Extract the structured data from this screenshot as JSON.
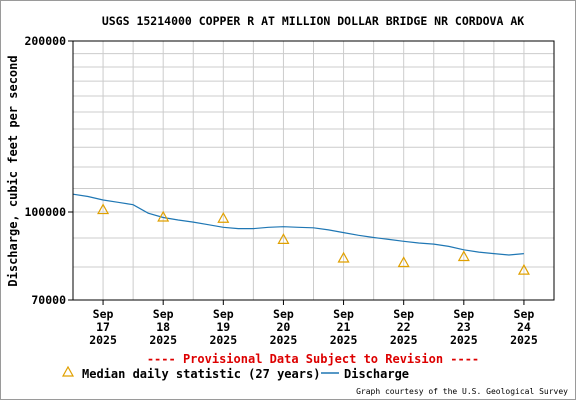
{
  "chart_data": {
    "type": "line",
    "title": "USGS 15214000 COPPER R AT MILLION DOLLAR BRIDGE NR CORDOVA AK",
    "ylabel": "Discharge, cubic feet per second",
    "xlabel": "",
    "y_scale": "log",
    "ylim": [
      70000,
      200000
    ],
    "y_ticks": [
      {
        "value": 70000,
        "label": "70000"
      },
      {
        "value": 100000,
        "label": "100000"
      },
      {
        "value": 200000,
        "label": "200000"
      }
    ],
    "xlim": [
      "2025-09-16T12:00",
      "2025-09-24T12:00"
    ],
    "x_ticks": [
      {
        "date": "2025-09-17",
        "label_month": "Sep",
        "label_day": "17",
        "label_year": "2025"
      },
      {
        "date": "2025-09-18",
        "label_month": "Sep",
        "label_day": "18",
        "label_year": "2025"
      },
      {
        "date": "2025-09-19",
        "label_month": "Sep",
        "label_day": "19",
        "label_year": "2025"
      },
      {
        "date": "2025-09-20",
        "label_month": "Sep",
        "label_day": "20",
        "label_year": "2025"
      },
      {
        "date": "2025-09-21",
        "label_month": "Sep",
        "label_day": "21",
        "label_year": "2025"
      },
      {
        "date": "2025-09-22",
        "label_month": "Sep",
        "label_day": "22",
        "label_year": "2025"
      },
      {
        "date": "2025-09-23",
        "label_month": "Sep",
        "label_day": "23",
        "label_year": "2025"
      },
      {
        "date": "2025-09-24",
        "label_month": "Sep",
        "label_day": "24",
        "label_year": "2025"
      }
    ],
    "grid": true,
    "series": [
      {
        "name": "Discharge",
        "color": "#1f77b4",
        "points": [
          [
            "2025-09-16T12:00",
            107500
          ],
          [
            "2025-09-16T18:00",
            106500
          ],
          [
            "2025-09-17T00:00",
            105000
          ],
          [
            "2025-09-17T06:00",
            104000
          ],
          [
            "2025-09-17T12:00",
            103000
          ],
          [
            "2025-09-17T18:00",
            99500
          ],
          [
            "2025-09-18T00:00",
            97800
          ],
          [
            "2025-09-18T06:00",
            96800
          ],
          [
            "2025-09-18T12:00",
            96000
          ],
          [
            "2025-09-18T18:00",
            95000
          ],
          [
            "2025-09-19T00:00",
            94000
          ],
          [
            "2025-09-19T06:00",
            93500
          ],
          [
            "2025-09-19T12:00",
            93500
          ],
          [
            "2025-09-19T18:00",
            94000
          ],
          [
            "2025-09-20T00:00",
            94200
          ],
          [
            "2025-09-20T06:00",
            94000
          ],
          [
            "2025-09-20T12:00",
            93800
          ],
          [
            "2025-09-20T18:00",
            93000
          ],
          [
            "2025-09-21T00:00",
            92000
          ],
          [
            "2025-09-21T06:00",
            91000
          ],
          [
            "2025-09-21T12:00",
            90200
          ],
          [
            "2025-09-21T18:00",
            89500
          ],
          [
            "2025-09-22T00:00",
            88800
          ],
          [
            "2025-09-22T06:00",
            88200
          ],
          [
            "2025-09-22T12:00",
            87800
          ],
          [
            "2025-09-22T18:00",
            87000
          ],
          [
            "2025-09-23T00:00",
            85800
          ],
          [
            "2025-09-23T06:00",
            85000
          ],
          [
            "2025-09-23T12:00",
            84500
          ],
          [
            "2025-09-23T18:00",
            84000
          ],
          [
            "2025-09-24T00:00",
            84500
          ]
        ]
      },
      {
        "name": "Median daily statistic (27 years)",
        "color": "#e0a000",
        "marker": "triangle",
        "points": [
          [
            "2025-09-17T00:00",
            101000
          ],
          [
            "2025-09-18T00:00",
            98000
          ],
          [
            "2025-09-19T00:00",
            97500
          ],
          [
            "2025-09-20T00:00",
            89500
          ],
          [
            "2025-09-21T00:00",
            83000
          ],
          [
            "2025-09-22T00:00",
            81500
          ],
          [
            "2025-09-23T00:00",
            83500
          ],
          [
            "2025-09-24T00:00",
            79000
          ]
        ]
      }
    ],
    "legend": {
      "placement": "bottom",
      "median_label": "Median daily statistic (27 years)",
      "discharge_label": "Discharge"
    },
    "provisional_notice": "---- Provisional Data Subject to Revision ----",
    "credit": "Graph courtesy of the U.S. Geological Survey",
    "colors": {
      "provisional": "#dd0000",
      "grid": "#cccccc",
      "axis": "#000000"
    }
  }
}
